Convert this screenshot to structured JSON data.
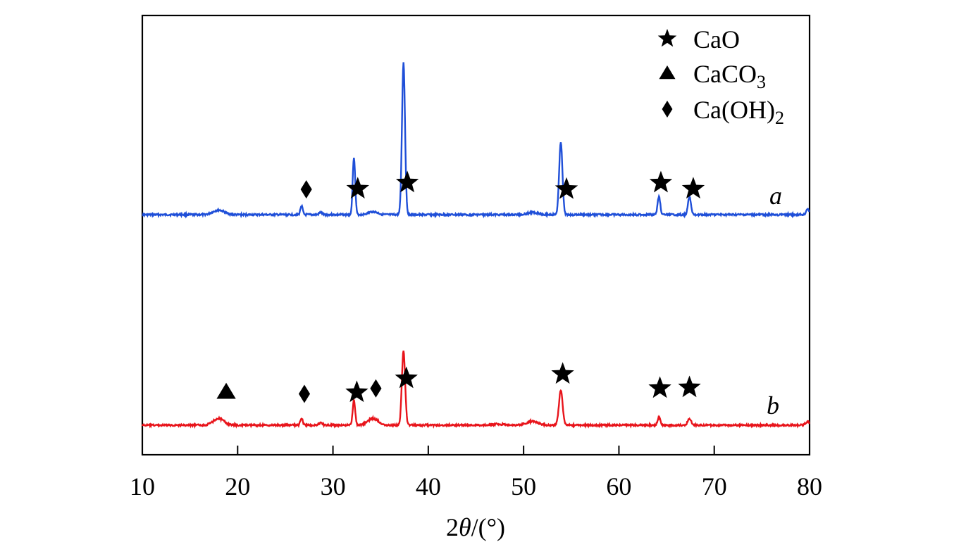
{
  "chart_data": {
    "type": "line",
    "title": "",
    "xlabel": "2θ/(°)",
    "xlabel_parts": {
      "num": "2",
      "theta": "θ",
      "rest": "/(°)"
    },
    "ylabel": "",
    "xlim": [
      10,
      80
    ],
    "xticks": [
      10,
      20,
      30,
      40,
      50,
      60,
      70,
      80
    ],
    "grid": false,
    "legend_position": "top-right",
    "legend": [
      {
        "marker": "star",
        "label": "CaO"
      },
      {
        "marker": "triangle",
        "label_main": "CaCO",
        "label_sub": "3",
        "label": "CaCO3"
      },
      {
        "marker": "diamond",
        "label_main": "Ca(OH)",
        "label_sub": "2",
        "label": "Ca(OH)2"
      }
    ],
    "series": [
      {
        "name": "a",
        "color": "#1f4fd8",
        "baseline": 0,
        "peaks": [
          {
            "x": 18.0,
            "h": 3,
            "w": 0.6
          },
          {
            "x": 26.7,
            "h": 6,
            "w": 0.12
          },
          {
            "x": 28.7,
            "h": 1.5,
            "w": 0.15
          },
          {
            "x": 32.2,
            "h": 38,
            "w": 0.13
          },
          {
            "x": 34.2,
            "h": 2,
            "w": 0.5
          },
          {
            "x": 37.4,
            "h": 100,
            "w": 0.16
          },
          {
            "x": 51.0,
            "h": 1.5,
            "w": 0.6
          },
          {
            "x": 53.9,
            "h": 48,
            "w": 0.17
          },
          {
            "x": 64.2,
            "h": 12,
            "w": 0.14
          },
          {
            "x": 67.4,
            "h": 12,
            "w": 0.15
          },
          {
            "x": 79.8,
            "h": 4,
            "w": 0.15
          }
        ],
        "markers": [
          {
            "x": 27.2,
            "type": "diamond"
          },
          {
            "x": 32.6,
            "type": "star"
          },
          {
            "x": 37.8,
            "type": "star"
          },
          {
            "x": 54.5,
            "type": "star"
          },
          {
            "x": 64.4,
            "type": "star"
          },
          {
            "x": 67.8,
            "type": "star"
          }
        ]
      },
      {
        "name": "b",
        "color": "#e8141b",
        "baseline": 0,
        "peaks": [
          {
            "x": 18.0,
            "h": 9,
            "w": 0.55
          },
          {
            "x": 26.7,
            "h": 10,
            "w": 0.12
          },
          {
            "x": 28.7,
            "h": 3,
            "w": 0.2
          },
          {
            "x": 32.2,
            "h": 34,
            "w": 0.13
          },
          {
            "x": 34.2,
            "h": 9,
            "w": 0.55
          },
          {
            "x": 37.4,
            "h": 100,
            "w": 0.17
          },
          {
            "x": 47.3,
            "h": 1.5,
            "w": 0.6
          },
          {
            "x": 50.9,
            "h": 5,
            "w": 0.6
          },
          {
            "x": 53.9,
            "h": 47,
            "w": 0.19
          },
          {
            "x": 64.2,
            "h": 10,
            "w": 0.15
          },
          {
            "x": 67.4,
            "h": 9,
            "w": 0.18
          },
          {
            "x": 79.8,
            "h": 5,
            "w": 0.2
          }
        ],
        "markers": [
          {
            "x": 18.8,
            "type": "triangle"
          },
          {
            "x": 27.0,
            "type": "diamond"
          },
          {
            "x": 32.5,
            "type": "star"
          },
          {
            "x": 34.5,
            "type": "diamond"
          },
          {
            "x": 37.7,
            "type": "star"
          },
          {
            "x": 54.1,
            "type": "star"
          },
          {
            "x": 64.3,
            "type": "star"
          },
          {
            "x": 67.4,
            "type": "star"
          }
        ]
      }
    ]
  }
}
